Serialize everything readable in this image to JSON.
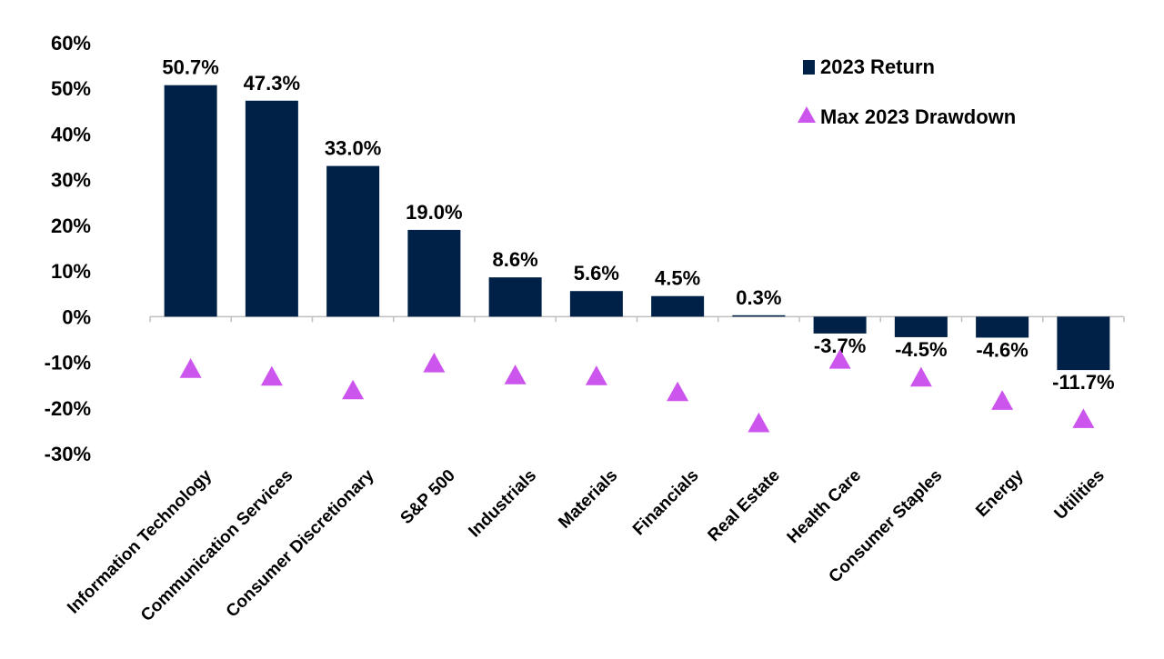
{
  "chart_data": {
    "type": "bar",
    "title": "",
    "xlabel": "",
    "ylabel": "",
    "categories": [
      "Information Technology",
      "Communication Services",
      "Consumer Discretionary",
      "S&P 500",
      "Industrials",
      "Materials",
      "Financials",
      "Real Estate",
      "Health Care",
      "Consumer Staples",
      "Energy",
      "Utilities"
    ],
    "series": [
      {
        "name": "2023 Return",
        "mark": "bar",
        "values": [
          50.7,
          47.3,
          33.0,
          19.0,
          8.6,
          5.6,
          4.5,
          0.3,
          -3.7,
          -4.5,
          -4.6,
          -11.7
        ],
        "labels": [
          "50.7%",
          "47.3%",
          "33.0%",
          "19.0%",
          "8.6%",
          "5.6%",
          "4.5%",
          "0.3%",
          "-3.7%",
          "-4.5%",
          "-4.6%",
          "-11.7%"
        ],
        "color": "#002147"
      },
      {
        "name": "Max 2023 Drawdown",
        "mark": "triangle",
        "values": [
          -11.5,
          -13.2,
          -16.2,
          -10.3,
          -12.9,
          -13.1,
          -16.6,
          -23.4,
          -9.5,
          -13.4,
          -18.5,
          -22.5
        ],
        "color": "#cc55ee"
      }
    ],
    "ylim": [
      -30,
      60
    ],
    "yticks": [
      "60%",
      "50%",
      "40%",
      "30%",
      "20%",
      "10%",
      "0%",
      "-10%",
      "-20%",
      "-30%"
    ],
    "ytick_values": [
      60,
      50,
      40,
      30,
      20,
      10,
      0,
      -10,
      -20,
      -30
    ],
    "grid": false,
    "legend": "top-right"
  }
}
